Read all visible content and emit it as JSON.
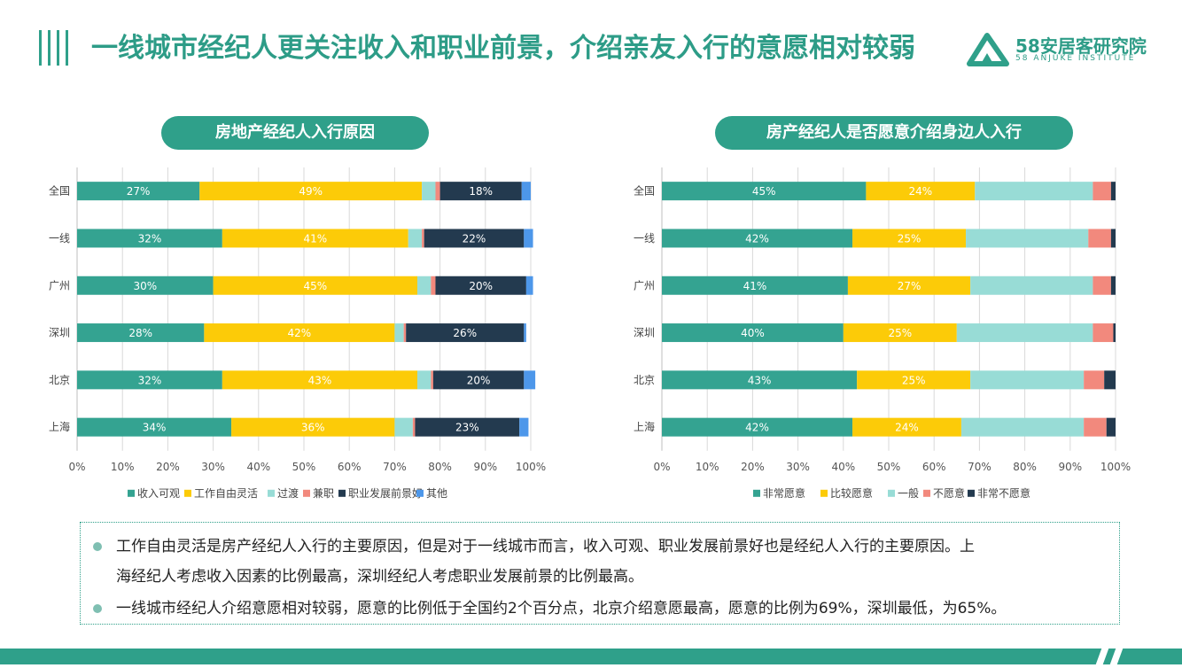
{
  "title": "一线城市经纪人更关注收入和职业前景，介绍亲友入行的意愿相对较弱",
  "logo": {
    "name": "58安居客研究院",
    "subtitle": "58 ANJUKE INSTITUTE"
  },
  "colors": {
    "accent": "#2fa08a"
  },
  "chart_data": [
    {
      "type": "bar",
      "orientation": "horizontal",
      "stacked": true,
      "title": "房地产经纪人入行原因",
      "categories": [
        "全国",
        "一线",
        "广州",
        "深圳",
        "北京",
        "上海"
      ],
      "xlim": [
        0,
        100
      ],
      "xticks": [
        "0%",
        "10%",
        "20%",
        "30%",
        "40%",
        "50%",
        "60%",
        "70%",
        "80%",
        "90%",
        "100%"
      ],
      "grid": true,
      "legend_position": "bottom",
      "series": [
        {
          "name": "收入可观",
          "color": "#34a391",
          "values": [
            27,
            32,
            30,
            28,
            32,
            34
          ],
          "labels": [
            "27%",
            "32%",
            "30%",
            "28%",
            "32%",
            "34%"
          ]
        },
        {
          "name": "工作自由灵活",
          "color": "#fccb08",
          "values": [
            49,
            41,
            45,
            42,
            43,
            36
          ],
          "labels": [
            "49%",
            "41%",
            "45%",
            "42%",
            "43%",
            "36%"
          ]
        },
        {
          "name": "过渡",
          "color": "#98dcd6",
          "values": [
            3,
            3,
            3,
            2,
            3,
            4
          ],
          "labels": [
            "",
            "",
            "",
            "",
            "",
            ""
          ]
        },
        {
          "name": "兼职",
          "color": "#f2897d",
          "values": [
            1,
            0.5,
            1,
            0.5,
            0.5,
            0.5
          ],
          "labels": [
            "",
            "",
            "",
            "",
            "",
            ""
          ]
        },
        {
          "name": "职业发展前景好",
          "color": "#233a4f",
          "values": [
            18,
            22,
            20,
            26,
            20,
            23
          ],
          "labels": [
            "18%",
            "22%",
            "20%",
            "26%",
            "20%",
            "23%"
          ]
        },
        {
          "name": "其他",
          "color": "#4d97ea",
          "values": [
            2,
            2,
            1.5,
            0.5,
            2.5,
            2
          ],
          "labels": [
            "",
            "",
            "",
            "",
            "",
            ""
          ]
        }
      ]
    },
    {
      "type": "bar",
      "orientation": "horizontal",
      "stacked": true,
      "title": "房产经纪人是否愿意介绍身边人入行",
      "categories": [
        "全国",
        "一线",
        "广州",
        "深圳",
        "北京",
        "上海"
      ],
      "xlim": [
        0,
        100
      ],
      "xticks": [
        "0%",
        "10%",
        "20%",
        "30%",
        "40%",
        "50%",
        "60%",
        "70%",
        "80%",
        "90%",
        "100%"
      ],
      "grid": true,
      "legend_position": "bottom",
      "series": [
        {
          "name": "非常愿意",
          "color": "#34a391",
          "values": [
            45,
            42,
            41,
            40,
            43,
            42
          ],
          "labels": [
            "45%",
            "42%",
            "41%",
            "40%",
            "43%",
            "42%"
          ]
        },
        {
          "name": "比较愿意",
          "color": "#fccb08",
          "values": [
            24,
            25,
            27,
            25,
            25,
            24
          ],
          "labels": [
            "24%",
            "25%",
            "27%",
            "25%",
            "25%",
            "24%"
          ]
        },
        {
          "name": "一般",
          "color": "#98dcd6",
          "values": [
            26,
            27,
            27,
            30,
            25,
            27
          ],
          "labels": [
            "",
            "",
            "",
            "",
            "",
            ""
          ]
        },
        {
          "name": "不愿意",
          "color": "#f2897d",
          "values": [
            4,
            5,
            4,
            4.5,
            4.5,
            5
          ],
          "labels": [
            "",
            "",
            "",
            "",
            "",
            ""
          ]
        },
        {
          "name": "非常不愿意",
          "color": "#233a4f",
          "values": [
            1,
            1,
            1,
            0.5,
            2.5,
            2
          ],
          "labels": [
            "",
            "",
            "",
            "",
            "",
            ""
          ]
        }
      ]
    }
  ],
  "notes": [
    "工作自由灵活是房产经纪人入行的主要原因，但是对于一线城市而言，收入可观、职业发展前景好也是经纪人入行的主要原因。上",
    "海经纪人考虑收入因素的比例最高，深圳经纪人考虑职业发展前景的比例最高。",
    "一线城市经纪人介绍意愿相对较弱，愿意的比例低于全国约2个百分点，北京介绍意愿最高，愿意的比例为69%，深圳最低，为65%。"
  ]
}
